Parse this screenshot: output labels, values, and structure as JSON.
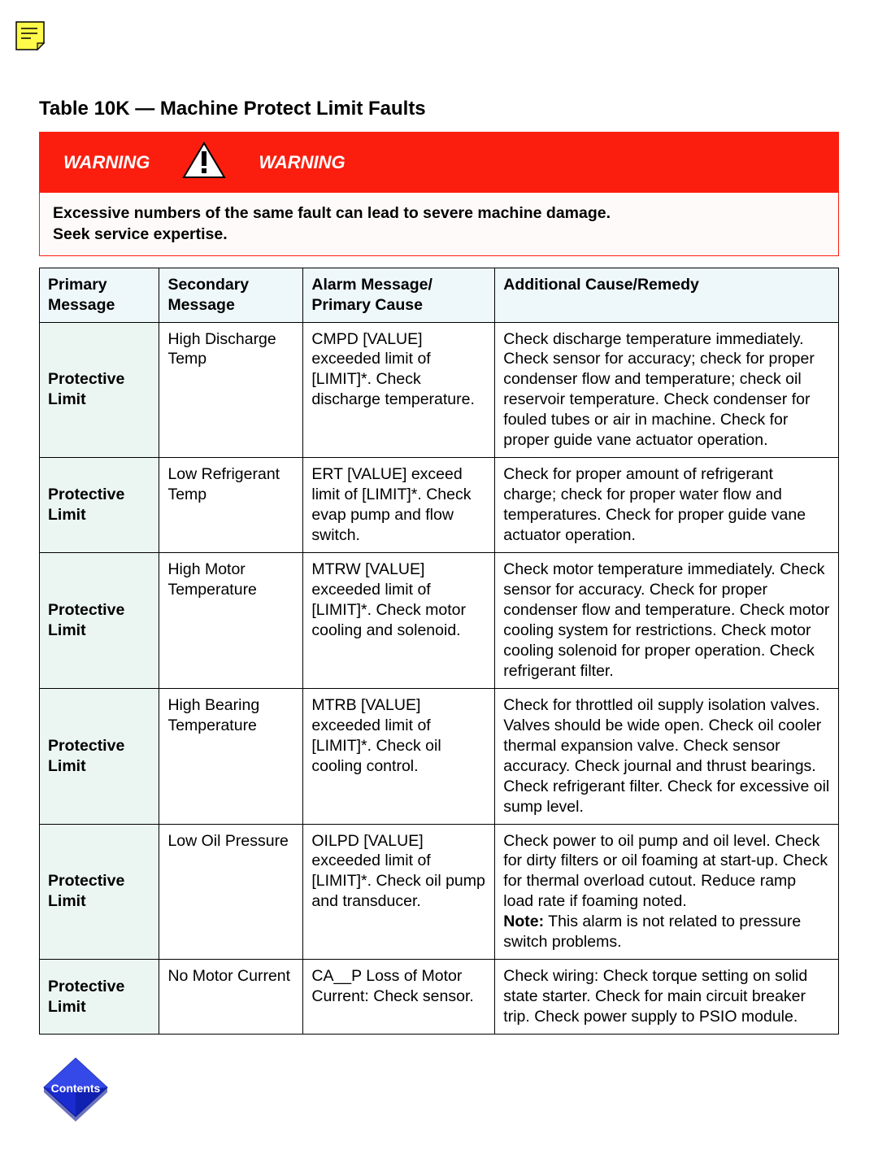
{
  "colors": {
    "warning_bg": "#fb1e0f",
    "warning_text": "#ffffff",
    "th_bg": "#eef7fa",
    "primary_col_bg": "#ebf5f1",
    "page_bg": "#ffffff",
    "note_icon_fill": "#fffb4a",
    "note_icon_stroke": "#000000",
    "contents_icon_fill": "#1a2bd0",
    "contents_icon_text": "#ffffff"
  },
  "title": "Table 10K — Machine Protect Limit Faults",
  "warning": {
    "left_label": "WARNING",
    "right_label": "WARNING",
    "message_line1": "Excessive numbers of the same fault can lead to severe machine damage.",
    "message_line2": "Seek service expertise."
  },
  "columns": {
    "c1": "Primary Message",
    "c2": "Secondary Message",
    "c3": "Alarm Message/ Primary Cause",
    "c4": "Additional Cause/Remedy"
  },
  "rows": [
    {
      "primary": "Protective Limit",
      "secondary": "High Discharge Temp",
      "alarm": "CMPD [VALUE] exceeded limit of [LIMIT]*. Check discharge temperature.",
      "remedy": "Check discharge temperature immediately. Check sensor for accuracy; check for proper condenser flow and temperature; check oil reservoir temperature. Check condenser for fouled tubes or air in machine. Check for proper guide vane actuator operation."
    },
    {
      "primary": "Protective Limit",
      "secondary": "Low Refrigerant Temp",
      "alarm": "ERT [VALUE] exceed limit of [LIMIT]*. Check evap pump and flow switch.",
      "remedy": "Check for proper amount of refrigerant charge; check for proper water flow and temperatures. Check for proper guide vane actuator operation."
    },
    {
      "primary": "Protective Limit",
      "secondary": "High Motor Temperature",
      "alarm": "MTRW [VALUE] exceeded limit of [LIMIT]*. Check motor cooling and solenoid.",
      "remedy": "Check motor temperature immediately. Check sensor for accuracy. Check for proper condenser flow and temperature. Check motor cooling system for restrictions. Check motor cooling solenoid for proper operation. Check refrigerant filter."
    },
    {
      "primary": "Protective Limit",
      "secondary": "High Bearing Temperature",
      "alarm": "MTRB [VALUE] exceeded limit of [LIMIT]*. Check oil cooling control.",
      "remedy": "Check for throttled oil supply isolation valves. Valves should be wide open. Check oil cooler thermal expansion valve. Check sensor accuracy. Check journal and thrust bearings. Check refrigerant filter. Check for excessive oil sump level."
    },
    {
      "primary": "Protective Limit",
      "secondary": "Low Oil Pressure",
      "alarm": "OILPD [VALUE] exceeded limit of [LIMIT]*. Check oil pump and transducer.",
      "remedy": "Check power to oil pump and oil level. Check for dirty filters or oil foaming at start-up. Check for thermal overload cutout. Reduce ramp load rate if foaming noted.",
      "note_label": "Note:",
      "note_text": " This alarm is not related to pressure switch problems."
    },
    {
      "primary": "Protective Limit",
      "secondary": "No Motor Current",
      "alarm": "CA__P Loss of Motor Current: Check sensor.",
      "remedy": "Check wiring: Check torque setting on solid state starter. Check for main circuit breaker trip. Check power supply to PSIO module."
    }
  ],
  "contents_label": "Contents"
}
